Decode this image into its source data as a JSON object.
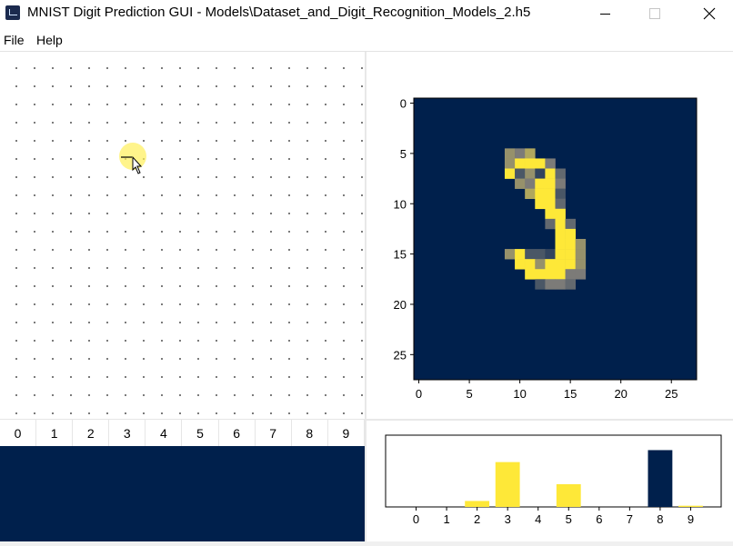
{
  "window": {
    "title": "MNIST Digit Prediction GUI - Models\\Dataset_and_Digit_Recognition_Models_2.h5"
  },
  "menu": {
    "file": "File",
    "help": "Help"
  },
  "digit_labels": [
    "0",
    "1",
    "2",
    "3",
    "4",
    "5",
    "6",
    "7",
    "8",
    "9"
  ],
  "image_plot": {
    "x_ticks": [
      "0",
      "5",
      "10",
      "15",
      "20",
      "25"
    ],
    "y_ticks": [
      "0",
      "5",
      "10",
      "15",
      "20",
      "25"
    ],
    "colormap": "cividis",
    "grid_size": 28,
    "pixels": [
      [
        9,
        5,
        0.6
      ],
      [
        10,
        5,
        0.5
      ],
      [
        11,
        5,
        0.7
      ],
      [
        9,
        6,
        0.6
      ],
      [
        10,
        6,
        1.0
      ],
      [
        11,
        6,
        1.0
      ],
      [
        12,
        6,
        1.0
      ],
      [
        13,
        6,
        0.5
      ],
      [
        9,
        7,
        1.0
      ],
      [
        10,
        7,
        0.3
      ],
      [
        11,
        7,
        0.6
      ],
      [
        12,
        7,
        0.2
      ],
      [
        13,
        7,
        1.0
      ],
      [
        14,
        7,
        0.4
      ],
      [
        10,
        8,
        0.6
      ],
      [
        11,
        8,
        0.5
      ],
      [
        12,
        8,
        1.0
      ],
      [
        13,
        8,
        1.0
      ],
      [
        14,
        8,
        0.5
      ],
      [
        11,
        9,
        0.7
      ],
      [
        12,
        9,
        1.0
      ],
      [
        13,
        9,
        1.0
      ],
      [
        14,
        9,
        0.3
      ],
      [
        12,
        10,
        1.0
      ],
      [
        13,
        10,
        1.0
      ],
      [
        14,
        10,
        0.4
      ],
      [
        13,
        11,
        1.0
      ],
      [
        14,
        11,
        1.0
      ],
      [
        13,
        12,
        0.4
      ],
      [
        14,
        12,
        1.0
      ],
      [
        15,
        12,
        0.4
      ],
      [
        14,
        13,
        1.0
      ],
      [
        15,
        13,
        1.0
      ],
      [
        14,
        14,
        1.0
      ],
      [
        15,
        14,
        1.0
      ],
      [
        16,
        14,
        0.6
      ],
      [
        9,
        15,
        0.6
      ],
      [
        10,
        15,
        1.0
      ],
      [
        11,
        15,
        0.3
      ],
      [
        12,
        15,
        0.3
      ],
      [
        13,
        15,
        0.2
      ],
      [
        14,
        15,
        1.0
      ],
      [
        15,
        15,
        1.0
      ],
      [
        16,
        15,
        0.6
      ],
      [
        10,
        16,
        1.0
      ],
      [
        11,
        16,
        1.0
      ],
      [
        12,
        16,
        0.6
      ],
      [
        13,
        16,
        1.0
      ],
      [
        14,
        16,
        1.0
      ],
      [
        15,
        16,
        1.0
      ],
      [
        16,
        16,
        0.6
      ],
      [
        11,
        17,
        1.0
      ],
      [
        12,
        17,
        1.0
      ],
      [
        13,
        17,
        1.0
      ],
      [
        14,
        17,
        1.0
      ],
      [
        15,
        17,
        0.5
      ],
      [
        16,
        17,
        0.5
      ],
      [
        12,
        18,
        0.3
      ],
      [
        13,
        18,
        0.5
      ],
      [
        14,
        18,
        0.5
      ],
      [
        15,
        18,
        0.4
      ]
    ]
  },
  "chart_data": {
    "type": "bar",
    "categories": [
      "0",
      "1",
      "2",
      "3",
      "4",
      "5",
      "6",
      "7",
      "8",
      "9"
    ],
    "values": [
      0,
      0,
      0.1,
      0.75,
      0,
      0.38,
      0,
      0,
      0.95,
      0.02
    ],
    "value_colors": [
      "#fee838",
      "#fee838",
      "#fee838",
      "#fee838",
      "#fee838",
      "#fee838",
      "#fee838",
      "#fee838",
      "#00204c",
      "#fee838"
    ],
    "ylim": [
      0,
      1.2
    ]
  },
  "colors": {
    "navy": "#00204c",
    "yellow": "#fee838"
  }
}
